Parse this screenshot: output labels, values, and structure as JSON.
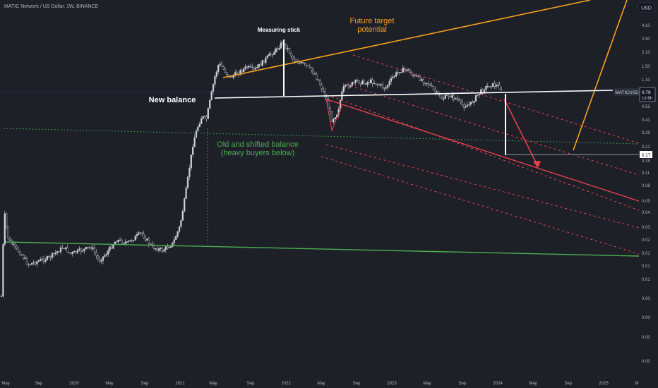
{
  "header": {
    "symbol_title": "MATIC Network / US Dollar, 1W, BINANCE",
    "currency_button": "USD"
  },
  "price_label": {
    "symbol": "MATICUSD",
    "price": "0.79",
    "countdown": "1d 6h"
  },
  "level_label": "0.17",
  "annotations": {
    "measuring_stick": "Measuring stick",
    "future_target_line1": "Future target",
    "future_target_line2": "potential",
    "new_balance": "New balance",
    "old_balance_line1": "Old and shifted balance",
    "old_balance_line2": "(heavy buyers below)"
  },
  "colors": {
    "background": "#1e2028",
    "bull_candle": "#d1d4dc",
    "bear_candle": "#131722",
    "white_line": "#ffffff",
    "orange": "#f7a21b",
    "red": "#f0414f",
    "green_solid": "#4caf50",
    "green_dotted": "#4caf50",
    "axis_text": "#b2b5be",
    "label_bg": "#131722"
  },
  "chart_data": {
    "type": "candlestick",
    "title": "MATIC Network / US Dollar, 1W, BINANCE",
    "y_scale": "log",
    "x_ticks": [
      "May",
      "Sep",
      "2020",
      "May",
      "Sep",
      "2021",
      "May",
      "Sep",
      "2022",
      "May",
      "Sep",
      "2023",
      "May",
      "Sep",
      "2024",
      "May",
      "Sep",
      "2025",
      "M"
    ],
    "y_ticks": [
      "4.10",
      "2.90",
      "2.10",
      "1.50",
      "1.10",
      "0.79",
      "0.55",
      "0.41",
      "0.29",
      "0.21",
      "0.17",
      "0.15",
      "0.11",
      "0.08",
      "0.05",
      "0.04",
      "0.03",
      "0.02",
      "0.01",
      "0.01",
      "0.01",
      "0.00",
      "0.00",
      "0.00",
      "0.00"
    ],
    "last_price": 0.79,
    "key_levels": [
      {
        "name": "New balance",
        "value": 0.79
      },
      {
        "name": "Target",
        "value": 0.17
      }
    ],
    "grid": false
  }
}
